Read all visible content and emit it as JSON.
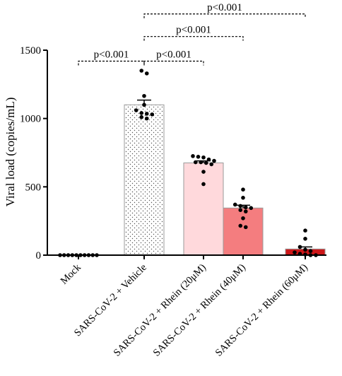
{
  "chart_data": {
    "type": "bar",
    "ylabel": "Viral load (copies/mL)",
    "ylim": [
      0,
      1500
    ],
    "yticks": [
      0,
      500,
      1000,
      1500
    ],
    "categories": [
      "Mock",
      "SARS-CoV-2 + Vehicle",
      "SARS-CoV-2 + Rhein (20μM)",
      "SARS-CoV-2 + Rhein (40μM)",
      "SARS-CoV-2 + Rhein (60μM)"
    ],
    "values": [
      0,
      1100,
      675,
      345,
      45
    ],
    "errors": [
      0,
      35,
      15,
      20,
      15
    ],
    "bar_colors": [
      "#ffffff",
      "#ffffff",
      "#ffd9dc",
      "#f47d7f",
      "#cc1719"
    ],
    "bar_patterns": [
      "none",
      "dots",
      "none",
      "none",
      "none"
    ],
    "points": [
      [
        0,
        0,
        0,
        0,
        0,
        0,
        0,
        0,
        0,
        0
      ],
      [
        1350,
        1330,
        1165,
        1100,
        1060,
        1040,
        1035,
        1030,
        1010,
        1000
      ],
      [
        725,
        720,
        715,
        700,
        690,
        680,
        680,
        675,
        665,
        610,
        520
      ],
      [
        480,
        420,
        370,
        360,
        350,
        345,
        330,
        320,
        270,
        215,
        205
      ],
      [
        180,
        120,
        60,
        40,
        30,
        20,
        10,
        5,
        0,
        0
      ]
    ],
    "significance": [
      {
        "from": 0,
        "to": 1,
        "label": "p<0.001",
        "level": 1420
      },
      {
        "from": 1,
        "to": 2,
        "label": "p<0.001",
        "level": 1420
      },
      {
        "from": 1,
        "to": 3,
        "label": "p<0.001",
        "level": 1600
      },
      {
        "from": 1,
        "to": 4,
        "label": "p<0.001",
        "level": 1765
      }
    ]
  }
}
